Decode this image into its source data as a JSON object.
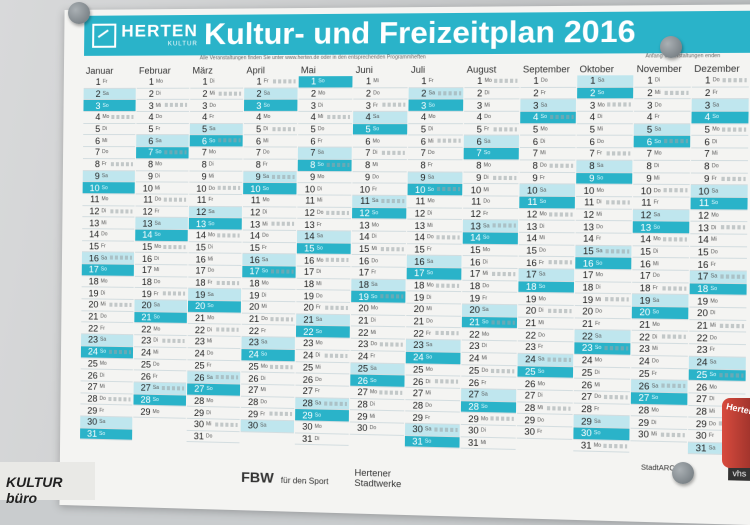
{
  "header": {
    "logo_text": "HERTEN",
    "logo_sub": "KULTUR",
    "title": "Kultur- und Freizeitplan 2016",
    "subline": "Alle Veranstaltungen finden Sie unter www.herten.de oder in den entsprechenden Programmheften",
    "subright": "Anfang Veranstaltungen enden"
  },
  "months": [
    {
      "name": "Januar",
      "days": 31,
      "start": 5
    },
    {
      "name": "Februar",
      "days": 29,
      "start": 1
    },
    {
      "name": "März",
      "days": 31,
      "start": 2
    },
    {
      "name": "April",
      "days": 30,
      "start": 5
    },
    {
      "name": "Mai",
      "days": 31,
      "start": 0
    },
    {
      "name": "Juni",
      "days": 30,
      "start": 3
    },
    {
      "name": "Juli",
      "days": 31,
      "start": 5
    },
    {
      "name": "August",
      "days": 31,
      "start": 1
    },
    {
      "name": "September",
      "days": 30,
      "start": 4
    },
    {
      "name": "Oktober",
      "days": 31,
      "start": 6
    },
    {
      "name": "November",
      "days": 30,
      "start": 2
    },
    {
      "name": "Dezember",
      "days": 31,
      "start": 4
    }
  ],
  "weekdays": [
    "So",
    "Mo",
    "Di",
    "Mi",
    "Do",
    "Fr",
    "Sa"
  ],
  "footer": {
    "fbw": "FBW",
    "fbw_sub": "für den Sport",
    "stadtwerke": "Hertener Stadtwerke",
    "stadtarchiv": "StadtARCHIV",
    "vhs": "vhs"
  },
  "sticker": {
    "text": "KULTUR büro"
  },
  "mug": {
    "text": "Herten"
  },
  "colors": {
    "accent": "#2ab3c9",
    "light": "#bfe6ee"
  }
}
